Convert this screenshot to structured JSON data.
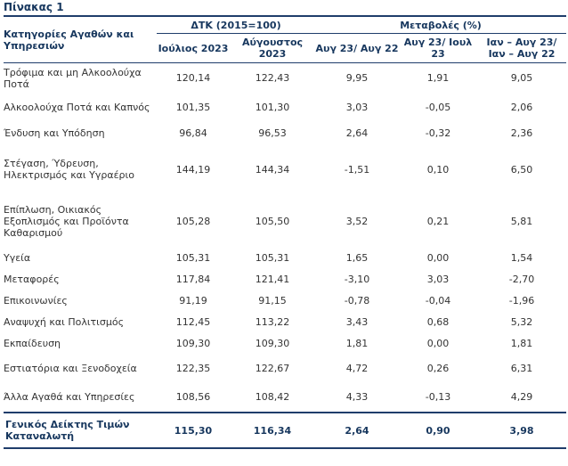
{
  "title": "Πίνακας 1",
  "header": {
    "category": "Κατηγορίες Αγαθών και Υπηρεσιών",
    "group_index": "ΔΤΚ (2015=100)",
    "group_change": "Μεταβολές (%)",
    "col_jul": "Ιούλιος 2023",
    "col_aug": "Αύγουστος 2023",
    "col_aug_yoy": "Αυγ 23/ Αυγ 22",
    "col_aug_mom": "Αυγ 23/ Ιουλ 23",
    "col_ytd": "Ιαν – Αυγ 23/ Ιαν – Αυγ 22"
  },
  "rows": [
    {
      "label": "Τρόφιμα και μη Αλκοολούχα Ποτά",
      "jul": "120,14",
      "aug": "122,43",
      "yoy": "9,95",
      "mom": "1,91",
      "ytd": "9,05"
    },
    {
      "label": "Αλκοολούχα Ποτά και Καπνός",
      "jul": "101,35",
      "aug": "101,30",
      "yoy": "3,03",
      "mom": "-0,05",
      "ytd": "2,06"
    },
    {
      "label": "Ένδυση και Υπόδηση",
      "jul": "96,84",
      "aug": "96,53",
      "yoy": "2,64",
      "mom": "-0,32",
      "ytd": "2,36"
    },
    {
      "label": "Στέγαση, Ύδρευση, Ηλεκτρισμός και Υγραέριο",
      "jul": "144,19",
      "aug": "144,34",
      "yoy": "-1,51",
      "mom": "0,10",
      "ytd": "6,50"
    },
    {
      "label": "Επίπλωση, Οικιακός Εξοπλισμός και Προϊόντα Καθαρισμού",
      "jul": "105,28",
      "aug": "105,50",
      "yoy": "3,52",
      "mom": "0,21",
      "ytd": "5,81"
    },
    {
      "label": "Υγεία",
      "jul": "105,31",
      "aug": "105,31",
      "yoy": "1,65",
      "mom": "0,00",
      "ytd": "1,54"
    },
    {
      "label": "Μεταφορές",
      "jul": "117,84",
      "aug": "121,41",
      "yoy": "-3,10",
      "mom": "3,03",
      "ytd": "-2,70"
    },
    {
      "label": "Επικοινωνίες",
      "jul": "91,19",
      "aug": "91,15",
      "yoy": "-0,78",
      "mom": "-0,04",
      "ytd": "-1,96"
    },
    {
      "label": "Αναψυχή και Πολιτισμός",
      "jul": "112,45",
      "aug": "113,22",
      "yoy": "3,43",
      "mom": "0,68",
      "ytd": "5,32"
    },
    {
      "label": "Εκπαίδευση",
      "jul": "109,30",
      "aug": "109,30",
      "yoy": "1,81",
      "mom": "0,00",
      "ytd": "1,81"
    },
    {
      "label": "Εστιατόρια και Ξενοδοχεία",
      "jul": "122,35",
      "aug": "122,67",
      "yoy": "4,72",
      "mom": "0,26",
      "ytd": "6,31"
    },
    {
      "label": "Άλλα Αγαθά και Υπηρεσίες",
      "jul": "108,56",
      "aug": "108,42",
      "yoy": "4,33",
      "mom": "-0,13",
      "ytd": "4,29"
    }
  ],
  "total": {
    "label": "Γενικός Δείκτης Τιμών Καταναλωτή",
    "jul": "115,30",
    "aug": "116,34",
    "yoy": "2,64",
    "mom": "0,90",
    "ytd": "3,98"
  }
}
